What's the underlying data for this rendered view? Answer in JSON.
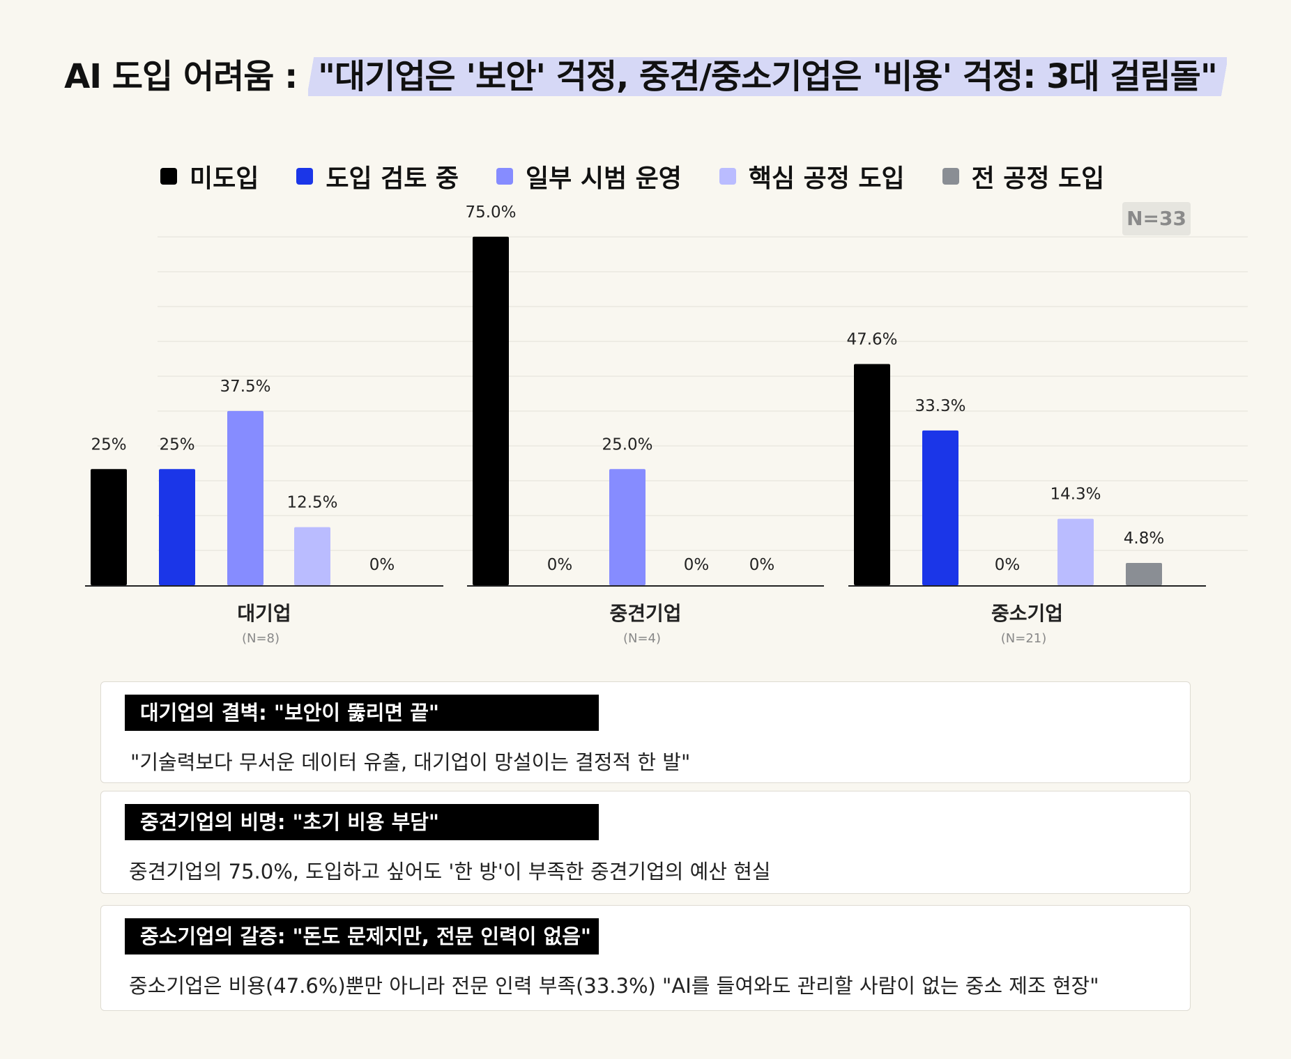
{
  "title": {
    "prefix": "AI 도입 어려움 : ",
    "highlight": "\"대기업은 '보안' 걱정, 중견/중소기업은 '비용' 걱정: 3대 걸림돌\""
  },
  "legend": [
    {
      "label": "미도입",
      "color": "#000000"
    },
    {
      "label": "도입 검토 중",
      "color": "#1b36e8"
    },
    {
      "label": "일부 시범 운영",
      "color": "#868cff"
    },
    {
      "label": "핵심 공정 도입",
      "color": "#babcff"
    },
    {
      "label": "전 공정 도입",
      "color": "#8a8e94"
    }
  ],
  "badge": "N=33",
  "chart_data": {
    "type": "bar",
    "series_names": [
      "미도입",
      "도입 검토 중",
      "일부 시범 운영",
      "핵심 공정 도입",
      "전 공정 도입"
    ],
    "colors": [
      "#000000",
      "#1b36e8",
      "#868cff",
      "#babcff",
      "#8a8e94"
    ],
    "ylim": [
      0,
      80
    ],
    "grid": true,
    "groups": [
      {
        "name": "대기업",
        "n": "(N=8)",
        "values": [
          25,
          25,
          37.5,
          12.5,
          0
        ],
        "labels": [
          "25%",
          "25%",
          "37.5%",
          "12.5%",
          "0%"
        ]
      },
      {
        "name": "중견기업",
        "n": "(N=4)",
        "values": [
          75,
          0,
          25,
          0,
          0
        ],
        "labels": [
          "75.0%",
          "0%",
          "25.0%",
          "0%",
          "0%"
        ]
      },
      {
        "name": "중소기업",
        "n": "(N=21)",
        "values": [
          47.6,
          33.3,
          0,
          14.3,
          4.8
        ],
        "labels": [
          "47.6%",
          "33.3%",
          "0%",
          "14.3%",
          "4.8%"
        ]
      }
    ]
  },
  "cards": [
    {
      "label": "대기업의 결벽: \"보안이 뚫리면 끝\"",
      "text": "\"기술력보다 무서운 데이터 유출, 대기업이 망설이는 결정적 한 발\""
    },
    {
      "label": "중견기업의 비명: \"초기 비용 부담\"",
      "text": "중견기업의 75.0%, 도입하고 싶어도 '한 방'이 부족한 중견기업의 예산 현실"
    },
    {
      "label": "중소기업의 갈증: \"돈도 문제지만, 전문 인력이 없음\"",
      "text": "중소기업은 비용(47.6%)뿐만 아니라 전문 인력 부족(33.3%) \"AI를 들여와도 관리할 사람이 없는 중소 제조 현장\""
    }
  ]
}
